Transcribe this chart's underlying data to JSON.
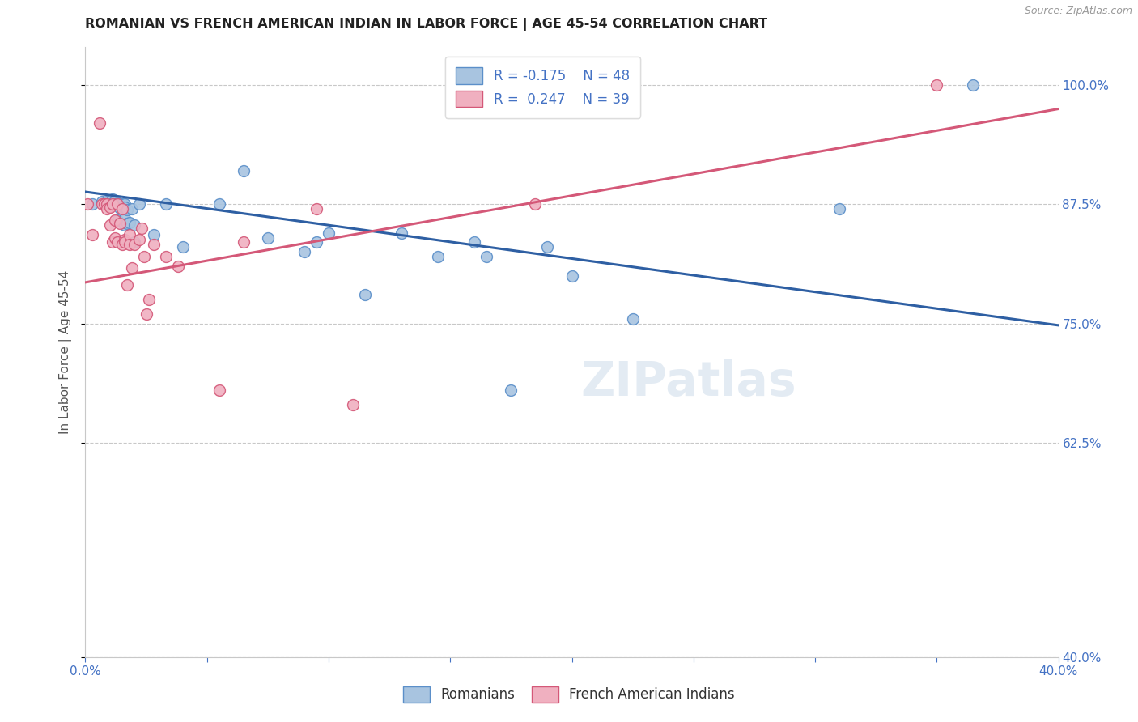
{
  "title": "ROMANIAN VS FRENCH AMERICAN INDIAN IN LABOR FORCE | AGE 45-54 CORRELATION CHART",
  "source": "Source: ZipAtlas.com",
  "ylabel": "In Labor Force | Age 45-54",
  "watermark": "ZIPatlas",
  "legend_blue_r": "-0.175",
  "legend_blue_n": "48",
  "legend_pink_r": "0.247",
  "legend_pink_n": "39",
  "blue_label": "Romanians",
  "pink_label": "French American Indians",
  "xlim": [
    0.0,
    0.4
  ],
  "ylim": [
    0.4,
    1.04
  ],
  "yticks": [
    0.4,
    0.625,
    0.75,
    0.875,
    1.0
  ],
  "ytick_labels": [
    "40.0%",
    "62.5%",
    "75.0%",
    "87.5%",
    "100.0%"
  ],
  "xticks": [
    0.0,
    0.05,
    0.1,
    0.15,
    0.2,
    0.25,
    0.3,
    0.35,
    0.4
  ],
  "xtick_labels": [
    "0.0%",
    "",
    "",
    "",
    "",
    "",
    "",
    "",
    "40.0%"
  ],
  "title_color": "#222222",
  "axis_label_color": "#555555",
  "tick_color": "#4472c4",
  "grid_color": "#c8c8c8",
  "blue_color": "#a8c4e0",
  "blue_edge_color": "#5b8fc9",
  "pink_color": "#f0b0c0",
  "pink_edge_color": "#d45878",
  "blue_line_color": "#2e5fa3",
  "pink_line_color": "#d45878",
  "blue_scatter_x": [
    0.003,
    0.007,
    0.008,
    0.009,
    0.01,
    0.01,
    0.011,
    0.011,
    0.012,
    0.012,
    0.013,
    0.013,
    0.013,
    0.014,
    0.014,
    0.015,
    0.015,
    0.016,
    0.016,
    0.016,
    0.016,
    0.017,
    0.017,
    0.018,
    0.019,
    0.02,
    0.02,
    0.022,
    0.028,
    0.033,
    0.04,
    0.055,
    0.065,
    0.075,
    0.09,
    0.095,
    0.1,
    0.115,
    0.13,
    0.145,
    0.16,
    0.165,
    0.175,
    0.19,
    0.2,
    0.225,
    0.31,
    0.365
  ],
  "blue_scatter_y": [
    0.875,
    0.878,
    0.875,
    0.878,
    0.875,
    0.875,
    0.88,
    0.876,
    0.876,
    0.879,
    0.875,
    0.876,
    0.858,
    0.875,
    0.871,
    0.875,
    0.873,
    0.875,
    0.872,
    0.86,
    0.853,
    0.869,
    0.855,
    0.856,
    0.87,
    0.835,
    0.853,
    0.875,
    0.843,
    0.875,
    0.83,
    0.875,
    0.91,
    0.84,
    0.825,
    0.835,
    0.845,
    0.78,
    0.845,
    0.82,
    0.835,
    0.82,
    0.68,
    0.83,
    0.8,
    0.755,
    0.87,
    1.0
  ],
  "pink_scatter_x": [
    0.001,
    0.003,
    0.006,
    0.007,
    0.008,
    0.009,
    0.009,
    0.01,
    0.01,
    0.011,
    0.011,
    0.012,
    0.012,
    0.013,
    0.013,
    0.014,
    0.015,
    0.015,
    0.016,
    0.016,
    0.017,
    0.018,
    0.018,
    0.019,
    0.02,
    0.022,
    0.023,
    0.024,
    0.025,
    0.026,
    0.028,
    0.033,
    0.038,
    0.055,
    0.065,
    0.095,
    0.11,
    0.185,
    0.35
  ],
  "pink_scatter_y": [
    0.875,
    0.843,
    0.96,
    0.875,
    0.875,
    0.875,
    0.87,
    0.872,
    0.853,
    0.875,
    0.835,
    0.858,
    0.84,
    0.835,
    0.875,
    0.855,
    0.833,
    0.87,
    0.838,
    0.835,
    0.79,
    0.843,
    0.833,
    0.808,
    0.833,
    0.838,
    0.85,
    0.82,
    0.76,
    0.775,
    0.833,
    0.82,
    0.81,
    0.68,
    0.835,
    0.87,
    0.665,
    0.875,
    1.0
  ],
  "blue_trendline_x": [
    0.0,
    0.4
  ],
  "blue_trendline_y": [
    0.888,
    0.748
  ],
  "pink_trendline_x": [
    0.0,
    0.4
  ],
  "pink_trendline_y": [
    0.793,
    0.975
  ]
}
